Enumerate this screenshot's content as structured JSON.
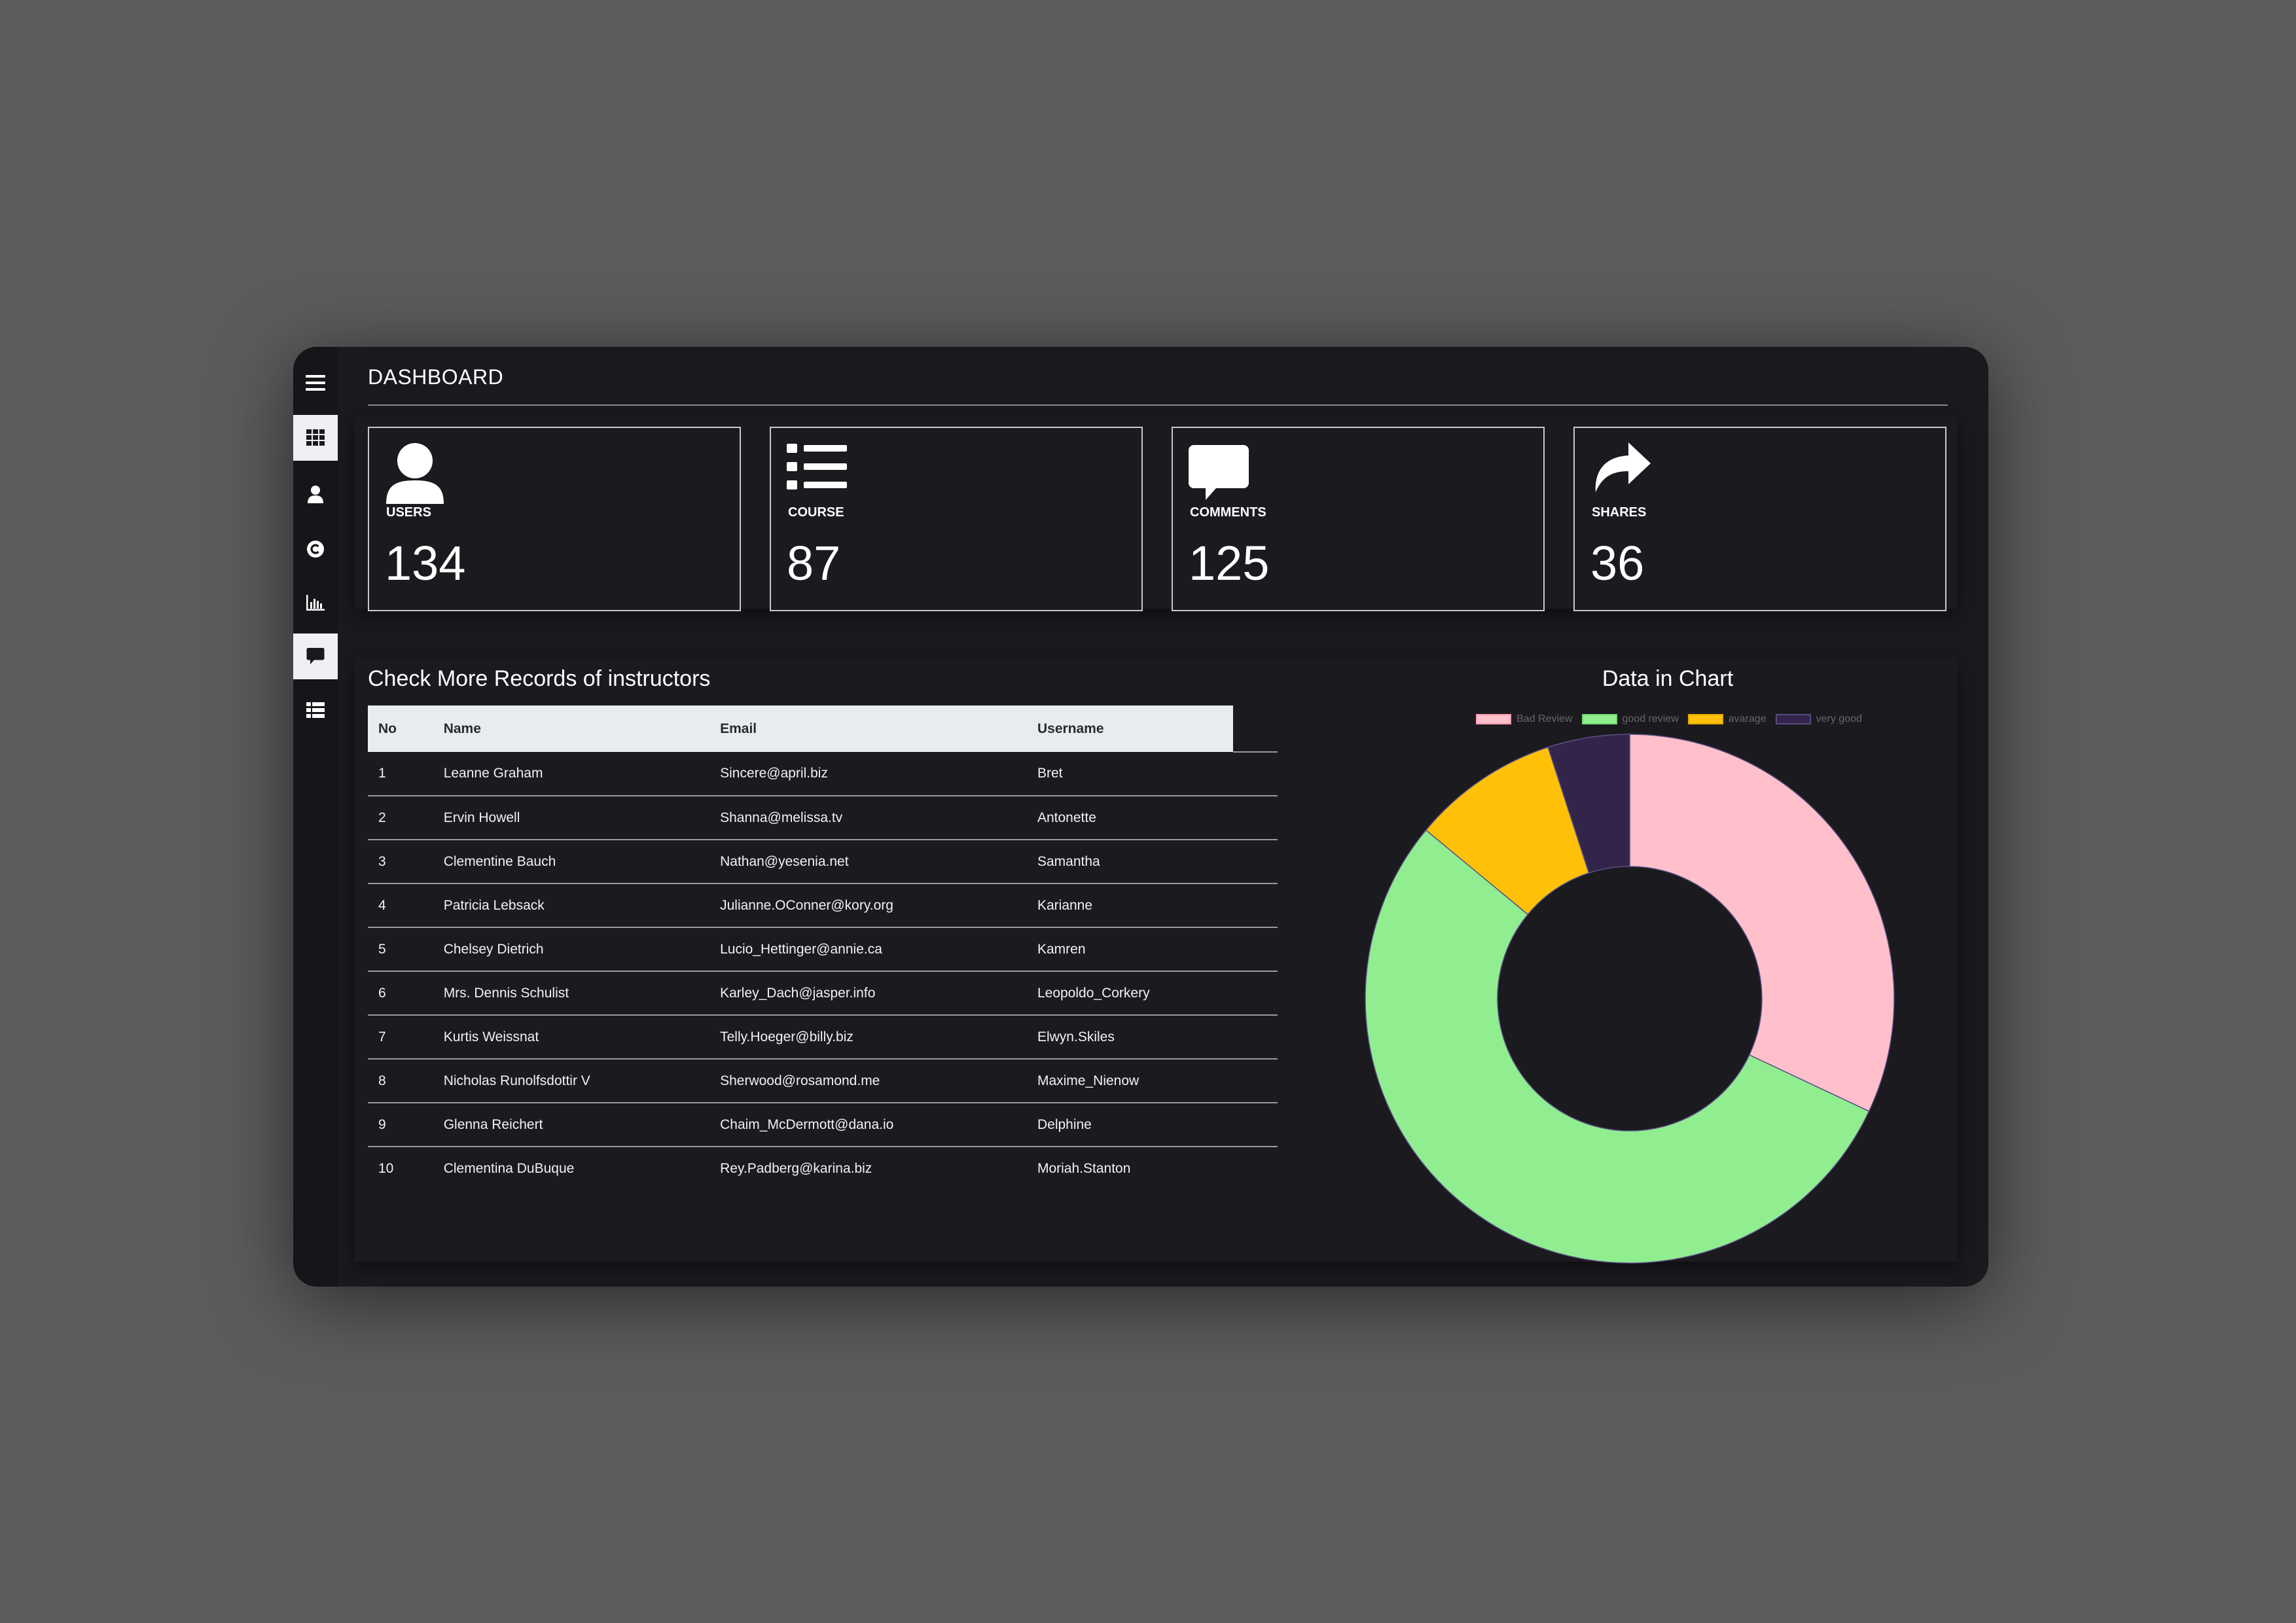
{
  "header": {
    "title": "DASHBOARD"
  },
  "sidebar": {
    "items": [
      {
        "icon": "menu-icon",
        "active": false
      },
      {
        "icon": "grid-icon",
        "active": true
      },
      {
        "icon": "user-icon",
        "active": false
      },
      {
        "icon": "copyright-icon",
        "active": false
      },
      {
        "icon": "bar-chart-icon",
        "active": false
      },
      {
        "icon": "comment-icon",
        "active": true
      },
      {
        "icon": "list-icon",
        "active": false
      }
    ]
  },
  "stats": [
    {
      "icon": "user-icon",
      "label": "USERS",
      "value": "134"
    },
    {
      "icon": "list-icon",
      "label": "COURSE",
      "value": "87"
    },
    {
      "icon": "comment-icon",
      "label": "COMMENTS",
      "value": "125"
    },
    {
      "icon": "share-icon",
      "label": "SHARES",
      "value": "36"
    }
  ],
  "table": {
    "title": "Check More Records of instructors",
    "columns": [
      "No",
      "Name",
      "Email",
      "Username"
    ],
    "rows": [
      [
        "1",
        "Leanne Graham",
        "Sincere@april.biz",
        "Bret"
      ],
      [
        "2",
        "Ervin Howell",
        "Shanna@melissa.tv",
        "Antonette"
      ],
      [
        "3",
        "Clementine Bauch",
        "Nathan@yesenia.net",
        "Samantha"
      ],
      [
        "4",
        "Patricia Lebsack",
        "Julianne.OConner@kory.org",
        "Karianne"
      ],
      [
        "5",
        "Chelsey Dietrich",
        "Lucio_Hettinger@annie.ca",
        "Kamren"
      ],
      [
        "6",
        "Mrs. Dennis Schulist",
        "Karley_Dach@jasper.info",
        "Leopoldo_Corkery"
      ],
      [
        "7",
        "Kurtis Weissnat",
        "Telly.Hoeger@billy.biz",
        "Elwyn.Skiles"
      ],
      [
        "8",
        "Nicholas Runolfsdottir V",
        "Sherwood@rosamond.me",
        "Maxime_Nienow"
      ],
      [
        "9",
        "Glenna Reichert",
        "Chaim_McDermott@dana.io",
        "Delphine"
      ],
      [
        "10",
        "Clementina DuBuque",
        "Rey.Padberg@karina.biz",
        "Moriah.Stanton"
      ]
    ]
  },
  "chart_data": {
    "type": "pie",
    "title": "Data in Chart",
    "categories": [
      "Bad Review",
      "good review",
      "avarage",
      "very good"
    ],
    "values": [
      32,
      54,
      9,
      5
    ],
    "colors": [
      "#ffc0cb",
      "#90ee90",
      "#ffc107",
      "#33254a"
    ],
    "legend_position": "top"
  }
}
